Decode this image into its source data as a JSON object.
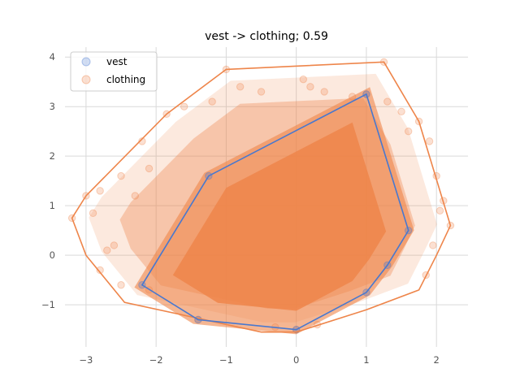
{
  "chart_data": {
    "type": "scatter",
    "title": "vest -> clothing; 0.59",
    "xlabel": "",
    "ylabel": "",
    "xlim": [
      -3.3,
      2.45
    ],
    "ylim": [
      -1.85,
      4.2
    ],
    "x_ticks": [
      -3,
      -2,
      -1,
      0,
      1,
      2
    ],
    "x_tick_labels": [
      "−3",
      "−2",
      "−1",
      "0",
      "1",
      "2"
    ],
    "y_ticks": [
      -1,
      0,
      1,
      2,
      3,
      4
    ],
    "y_tick_labels": [
      "−1",
      "0",
      "1",
      "2",
      "3",
      "4"
    ],
    "grid": true,
    "legend_position": "top-left",
    "series": [
      {
        "name": "vest",
        "color": "#4878cf",
        "hull": [
          [
            1.0,
            3.25
          ],
          [
            1.6,
            0.5
          ],
          [
            1.3,
            -0.2
          ],
          [
            1.0,
            -0.75
          ],
          [
            0.0,
            -1.5
          ],
          [
            -1.4,
            -1.3
          ],
          [
            -2.2,
            -0.6
          ],
          [
            -1.25,
            1.6
          ]
        ]
      },
      {
        "name": "clothing",
        "color": "#ee854a",
        "hull": [
          [
            1.25,
            3.9
          ],
          [
            1.75,
            2.7
          ],
          [
            2.2,
            0.6
          ],
          [
            2.0,
            0.0
          ],
          [
            1.75,
            -0.7
          ],
          [
            1.0,
            -1.1
          ],
          [
            0.0,
            -1.55
          ],
          [
            -0.5,
            -1.55
          ],
          [
            -2.45,
            -0.95
          ],
          [
            -3.0,
            0.0
          ],
          [
            -3.2,
            0.75
          ],
          [
            -3.0,
            1.2
          ],
          [
            -1.85,
            2.85
          ],
          [
            -1.0,
            3.75
          ]
        ],
        "scatter_points": [
          [
            1.25,
            3.9
          ],
          [
            -1.0,
            3.75
          ],
          [
            -1.85,
            2.85
          ],
          [
            1.75,
            2.7
          ],
          [
            -3.0,
            1.2
          ],
          [
            -3.2,
            0.75
          ],
          [
            2.2,
            0.6
          ],
          [
            0.1,
            3.55
          ],
          [
            0.4,
            3.3
          ],
          [
            -0.5,
            3.3
          ],
          [
            -1.2,
            3.1
          ],
          [
            -1.6,
            3.0
          ],
          [
            0.8,
            3.2
          ],
          [
            1.3,
            3.1
          ],
          [
            1.5,
            2.9
          ],
          [
            -2.2,
            2.3
          ],
          [
            -2.5,
            1.6
          ],
          [
            -2.8,
            1.3
          ],
          [
            -2.9,
            0.85
          ],
          [
            -2.6,
            0.2
          ],
          [
            -2.7,
            0.1
          ],
          [
            -2.8,
            -0.3
          ],
          [
            -2.5,
            -0.6
          ],
          [
            -2.1,
            -0.7
          ],
          [
            1.9,
            2.3
          ],
          [
            2.0,
            1.6
          ],
          [
            2.1,
            1.1
          ],
          [
            2.05,
            0.9
          ],
          [
            1.95,
            0.2
          ],
          [
            1.85,
            -0.4
          ],
          [
            -0.3,
            -1.45
          ],
          [
            0.3,
            -1.4
          ],
          [
            -1.4,
            -1.3
          ],
          [
            0.0,
            -1.5
          ],
          [
            1.0,
            3.25
          ],
          [
            0.2,
            3.4
          ],
          [
            -0.8,
            3.4
          ],
          [
            -2.3,
            1.2
          ],
          [
            -2.1,
            1.75
          ],
          [
            1.6,
            2.5
          ]
        ]
      }
    ]
  }
}
